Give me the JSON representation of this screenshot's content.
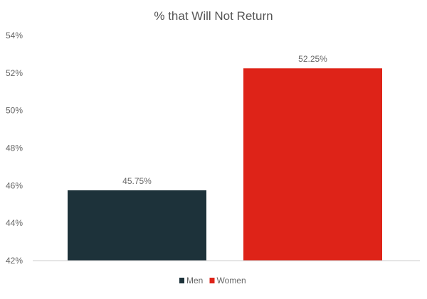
{
  "chart_data": {
    "type": "bar",
    "title": "% that Will Not Return",
    "xlabel": "",
    "ylabel": "",
    "ylim": [
      42,
      54
    ],
    "y_ticks": [
      "42%",
      "44%",
      "46%",
      "48%",
      "50%",
      "52%",
      "54%"
    ],
    "grid": false,
    "legend_position": "bottom",
    "series": [
      {
        "name": "Men",
        "values": [
          45.75
        ],
        "label": "45.75%",
        "color": "#1d323a"
      },
      {
        "name": "Women",
        "values": [
          52.25
        ],
        "label": "52.25%",
        "color": "#de2318"
      }
    ]
  }
}
